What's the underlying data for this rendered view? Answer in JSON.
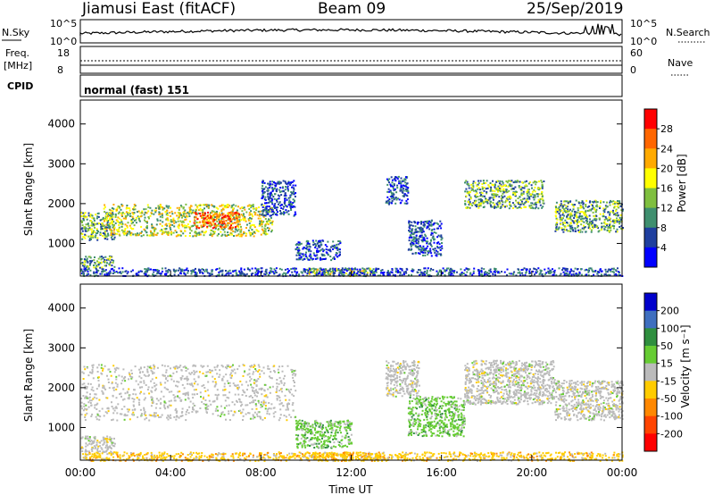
{
  "header": {
    "station": "Jiamusi East (fitACF)",
    "beam": "Beam 09",
    "date": "25/Sep/2019"
  },
  "top_panels": {
    "nsky_label": "N.Sky",
    "nsky_ticks": [
      "10^5",
      "10^0"
    ],
    "nsearch_label": "N.Search",
    "nsearch_ticks": [
      "10^5",
      "10^0"
    ],
    "freq_label": "Freq.",
    "freq_unit": "[MHz]",
    "freq_ticks": [
      "18",
      "8"
    ],
    "nave_label": "Nave",
    "nave_ticks": [
      "60",
      "0"
    ],
    "cpid_label": "CPID",
    "cpid_text": "normal (fast) 151"
  },
  "chart_data": [
    {
      "type": "heatmap",
      "name": "power",
      "xlabel": "",
      "ylabel": "Slant Range [km]",
      "xlim_hours": [
        0,
        24
      ],
      "ylim": [
        180,
        4600
      ],
      "yticks": [
        "4000",
        "3000",
        "2000",
        "1000"
      ],
      "colorbar_label": "Power [dB]",
      "colorbar_ticks": [
        "28",
        "24",
        "20",
        "16",
        "12",
        "8",
        "4"
      ],
      "colors": [
        "#ff0000",
        "#ff6600",
        "#ffaa00",
        "#ffff00",
        "#7fbf3f",
        "#3f8f6f",
        "#1f3f9f",
        "#0000ff"
      ],
      "regions": [
        {
          "t": [
            0.0,
            1.5
          ],
          "r": [
            1100,
            1800
          ],
          "level": "mid"
        },
        {
          "t": [
            1.0,
            8.5
          ],
          "r": [
            1200,
            2000
          ],
          "level": "high"
        },
        {
          "t": [
            5.0,
            7.0
          ],
          "r": [
            1400,
            1800
          ],
          "level": "max"
        },
        {
          "t": [
            8.0,
            9.5
          ],
          "r": [
            1700,
            2600
          ],
          "level": "low"
        },
        {
          "t": [
            0.0,
            1.5
          ],
          "r": [
            400,
            700
          ],
          "level": "mid"
        },
        {
          "t": [
            10.0,
            13.0
          ],
          "r": [
            200,
            400
          ],
          "level": "high"
        },
        {
          "t": [
            9.5,
            11.5
          ],
          "r": [
            600,
            1100
          ],
          "level": "low"
        },
        {
          "t": [
            13.5,
            14.5
          ],
          "r": [
            2000,
            2700
          ],
          "level": "low"
        },
        {
          "t": [
            14.5,
            16.0
          ],
          "r": [
            700,
            1600
          ],
          "level": "low"
        },
        {
          "t": [
            17.0,
            20.5
          ],
          "r": [
            1900,
            2600
          ],
          "level": "mid"
        },
        {
          "t": [
            21.0,
            24.0
          ],
          "r": [
            1300,
            2100
          ],
          "level": "mid"
        },
        {
          "t": [
            0.0,
            24.0
          ],
          "r": [
            200,
            400
          ],
          "level": "low"
        }
      ]
    },
    {
      "type": "heatmap",
      "name": "velocity",
      "xlabel": "Time UT",
      "ylabel": "Slant Range [km]",
      "xlim_hours": [
        0,
        24
      ],
      "ylim": [
        180,
        4600
      ],
      "xticks": [
        "00:00",
        "04:00",
        "08:00",
        "12:00",
        "16:00",
        "20:00",
        "00:00"
      ],
      "yticks": [
        "4000",
        "3000",
        "2000",
        "1000"
      ],
      "colorbar_label": "Velocity [m s⁻¹]",
      "colorbar_ticks": [
        "200",
        "100",
        "50",
        "15",
        "-15",
        "-50",
        "-100",
        "-200"
      ],
      "colors": [
        "#0000cc",
        "#3f6fbf",
        "#2f8f3f",
        "#66cc33",
        "#bbbbbb",
        "#ffcc00",
        "#ff8800",
        "#ff4400",
        "#ff0000"
      ],
      "regions": [
        {
          "t": [
            0.0,
            9.5
          ],
          "r": [
            1200,
            2600
          ],
          "v": "grey"
        },
        {
          "t": [
            0.0,
            1.5
          ],
          "r": [
            400,
            800
          ],
          "v": "grey"
        },
        {
          "t": [
            9.5,
            12.0
          ],
          "r": [
            500,
            1200
          ],
          "v": "green"
        },
        {
          "t": [
            10.0,
            13.5
          ],
          "r": [
            180,
            400
          ],
          "v": "yellow"
        },
        {
          "t": [
            13.5,
            15.0
          ],
          "r": [
            1800,
            2700
          ],
          "v": "grey"
        },
        {
          "t": [
            14.5,
            17.0
          ],
          "r": [
            800,
            1800
          ],
          "v": "green"
        },
        {
          "t": [
            17.0,
            21.0
          ],
          "r": [
            1600,
            2700
          ],
          "v": "grey"
        },
        {
          "t": [
            21.0,
            24.0
          ],
          "r": [
            1200,
            2200
          ],
          "v": "grey"
        },
        {
          "t": [
            0.0,
            24.0
          ],
          "r": [
            180,
            400
          ],
          "v": "yellow"
        }
      ]
    }
  ]
}
